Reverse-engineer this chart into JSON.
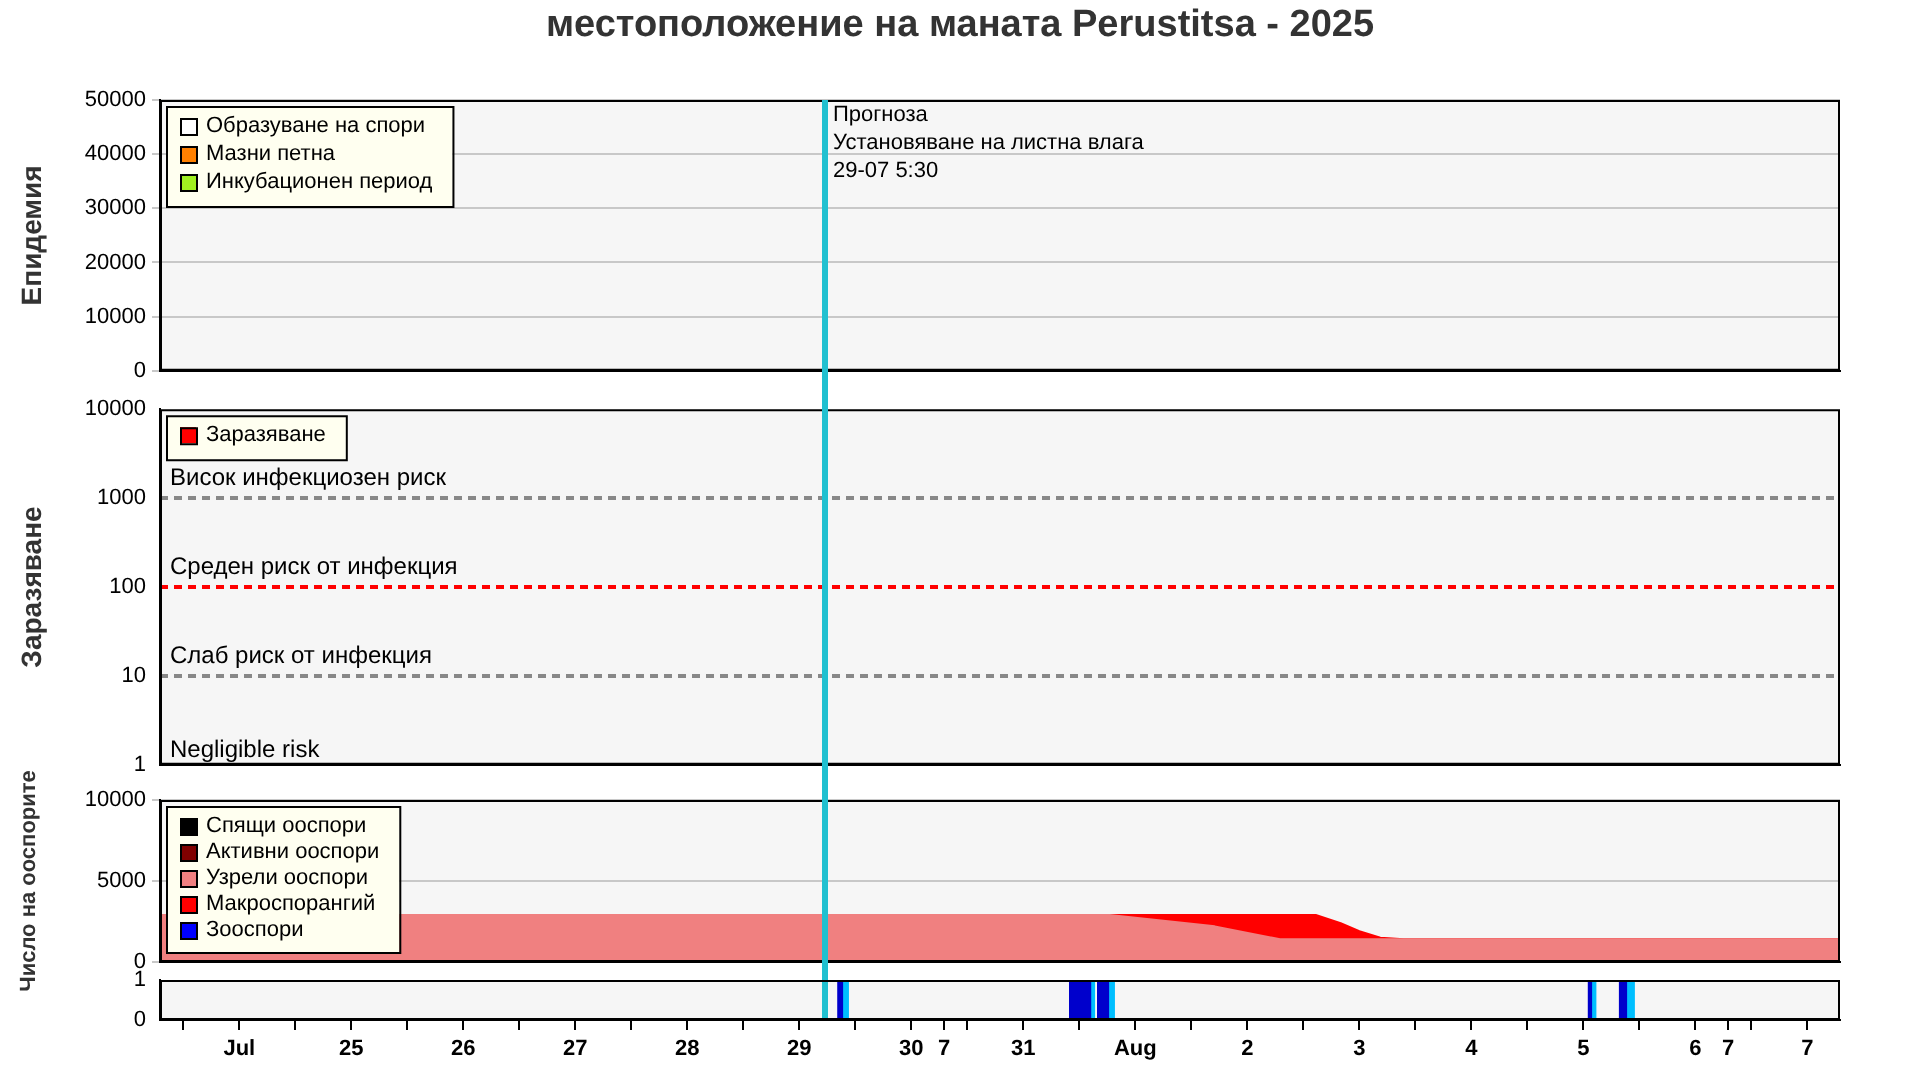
{
  "chart_data": [
    {
      "type": "area",
      "title": "местоположение на маната  Perustitsa - 2025",
      "ylabel": "Епидемия",
      "ylim": [
        0,
        50000
      ],
      "yticks": [
        0,
        10000,
        20000,
        30000,
        40000,
        50000
      ],
      "grid": "y",
      "legend": "top left",
      "tick_labels": "y",
      "series": [
        {
          "name": "Образуване на спори",
          "color": "#ffffff"
        },
        {
          "name": "Мазни петна",
          "color": "#ff8000"
        },
        {
          "name": "Инкубационен период",
          "color": "#a0f020"
        }
      ]
    },
    {
      "type": "line",
      "ylabel": "Заразяване",
      "ylim": [
        1,
        10000
      ],
      "yticks": [
        1,
        10,
        100,
        1000,
        10000
      ],
      "log": "y",
      "legend": "top left",
      "tick_labels": "y",
      "series": [
        {
          "name": "Заразяване",
          "color": "#ff0000"
        }
      ],
      "ref_lines": [
        {
          "axis": "y",
          "value": 1000,
          "label": "Висок инфекциозен риск",
          "color": "#888888",
          "line_style": "dashed"
        },
        {
          "axis": "y",
          "value": 100,
          "label": "Среден риск от инфекция",
          "color": "#ff0000",
          "line_style": "dashed"
        },
        {
          "axis": "y",
          "value": 10,
          "label": "Слаб риск от инфекция",
          "color": "#888888",
          "line_style": "dashed"
        }
      ],
      "annotations": [
        "Negligible risk"
      ]
    },
    {
      "type": "area",
      "ylabel": "Число на ооспорите",
      "xlim": [
        "2025-07-23T07:00",
        "2025-08-07T07:00"
      ],
      "ylim": [
        0,
        10000
      ],
      "yticks": [
        0,
        5000,
        10000
      ],
      "grid": "y",
      "legend": "top left",
      "tick_labels": "y",
      "stacked": true,
      "x": [
        "2025-07-23T07:00",
        "2025-07-31T18:30",
        "2025-08-01T17:00",
        "2025-08-02T07:00",
        "2025-08-02T14:40",
        "2025-08-02T20:00",
        "2025-08-03T00:00",
        "2025-08-03T04:30",
        "2025-08-03T09:30",
        "2025-08-07T07:00"
      ],
      "series": [
        {
          "name": "Спящи ооспори",
          "color": "#000000",
          "values": [
            null,
            null,
            null,
            null,
            null,
            null,
            null,
            null,
            null,
            null
          ]
        },
        {
          "name": "Активни ооспори",
          "color": "#800000",
          "values": [
            null,
            null,
            null,
            null,
            null,
            null,
            null,
            null,
            null,
            null
          ]
        },
        {
          "name": "Узрели ооспори",
          "color": "#f08080",
          "values": [
            2900,
            2900,
            2200,
            1400,
            1400,
            1400,
            1400,
            1400,
            1400,
            1400
          ]
        },
        {
          "name": "Макроспорангий",
          "color": "#ff0000",
          "values": [
            0,
            0,
            700,
            1500,
            1500,
            1000,
            500,
            100,
            0,
            0
          ]
        },
        {
          "name": "Зооспори",
          "color": "#0000ff",
          "values": [
            null,
            null,
            null,
            null,
            null,
            null,
            null,
            null,
            null,
            null
          ]
        }
      ]
    },
    {
      "type": "area",
      "xlim": [
        "2025-07-23T07:00",
        "2025-08-07T07:00"
      ],
      "ylim": [
        0,
        1
      ],
      "yticks": [
        0,
        1
      ],
      "xticks": [
        {
          "value": "2025-07-23T12:00",
          "label": null
        },
        {
          "value": "2025-07-24T00:00",
          "label": "Jul"
        },
        {
          "value": "2025-07-24T12:00",
          "label": null
        },
        {
          "value": "2025-07-25T00:00",
          "label": "25"
        },
        {
          "value": "2025-07-25T12:00",
          "label": null
        },
        {
          "value": "2025-07-26T00:00",
          "label": "26"
        },
        {
          "value": "2025-07-26T12:00",
          "label": null
        },
        {
          "value": "2025-07-27T00:00",
          "label": "27"
        },
        {
          "value": "2025-07-27T12:00",
          "label": null
        },
        {
          "value": "2025-07-28T00:00",
          "label": "28"
        },
        {
          "value": "2025-07-28T12:00",
          "label": null
        },
        {
          "value": "2025-07-29T00:00",
          "label": "29"
        },
        {
          "value": "2025-07-29T12:00",
          "label": null
        },
        {
          "value": "2025-07-30T00:00",
          "label": "30"
        },
        {
          "value": "2025-07-30T07:00",
          "label": "7"
        },
        {
          "value": "2025-07-30T12:00",
          "label": null
        },
        {
          "value": "2025-07-31T00:00",
          "label": "31"
        },
        {
          "value": "2025-07-31T12:00",
          "label": null
        },
        {
          "value": "2025-08-01T00:00",
          "label": "Aug"
        },
        {
          "value": "2025-08-01T12:00",
          "label": null
        },
        {
          "value": "2025-08-02T00:00",
          "label": "2"
        },
        {
          "value": "2025-08-02T12:00",
          "label": null
        },
        {
          "value": "2025-08-03T00:00",
          "label": "3"
        },
        {
          "value": "2025-08-03T12:00",
          "label": null
        },
        {
          "value": "2025-08-04T00:00",
          "label": "4"
        },
        {
          "value": "2025-08-04T12:00",
          "label": null
        },
        {
          "value": "2025-08-05T00:00",
          "label": "5"
        },
        {
          "value": "2025-08-05T12:00",
          "label": null
        },
        {
          "value": "2025-08-06T00:00",
          "label": "6"
        },
        {
          "value": "2025-08-06T07:00",
          "label": "7"
        },
        {
          "value": "2025-08-06T12:00",
          "label": null
        },
        {
          "value": "2025-08-07T00:00",
          "label": "7"
        }
      ],
      "series": [
        {
          "color": "#0000cc",
          "x": [
            "2025-07-29T08:20",
            "2025-07-29T08:20",
            "2025-07-29T09:10",
            "2025-07-29T09:10",
            "2025-07-31T10:00",
            "2025-07-31T10:00",
            "2025-07-31T14:20",
            "2025-07-31T14:20",
            "2025-07-31T16:00",
            "2025-07-31T16:00",
            "2025-07-31T18:10",
            "2025-07-31T18:10",
            "2025-08-05T01:10",
            "2025-08-05T01:10",
            "2025-08-05T01:40",
            "2025-08-05T01:40",
            "2025-08-05T07:50",
            "2025-08-05T07:50",
            "2025-08-05T09:10",
            "2025-08-05T09:10"
          ],
          "values": [
            0,
            1,
            1,
            0,
            0,
            1,
            1,
            0,
            0,
            1,
            1,
            0,
            0,
            1,
            1,
            0,
            0,
            1,
            1,
            0
          ]
        },
        {
          "color": "#00bfff",
          "x": [
            "2025-07-29T09:10",
            "2025-07-29T09:10",
            "2025-07-29T10:25",
            "2025-07-29T10:25",
            "2025-07-31T14:20",
            "2025-07-31T14:20",
            "2025-07-31T15:10",
            "2025-07-31T15:10",
            "2025-07-31T18:10",
            "2025-07-31T18:10",
            "2025-07-31T19:25",
            "2025-07-31T19:25",
            "2025-08-05T01:40",
            "2025-08-05T01:40",
            "2025-08-05T02:35",
            "2025-08-05T02:35",
            "2025-08-05T09:10",
            "2025-08-05T09:10",
            "2025-08-05T10:50",
            "2025-08-05T10:50"
          ],
          "values": [
            0,
            1,
            1,
            0,
            0,
            1,
            1,
            0,
            0,
            1,
            1,
            0,
            0,
            1,
            1,
            0,
            0,
            1,
            1,
            0
          ]
        }
      ],
      "ref_lines": [
        {
          "axis": "x",
          "value": "2025-07-29T05:30",
          "label": "Прогноза\nУстановяване на листна влага\n29-07 5:30",
          "color": "#20c0d0"
        }
      ]
    }
  ]
}
